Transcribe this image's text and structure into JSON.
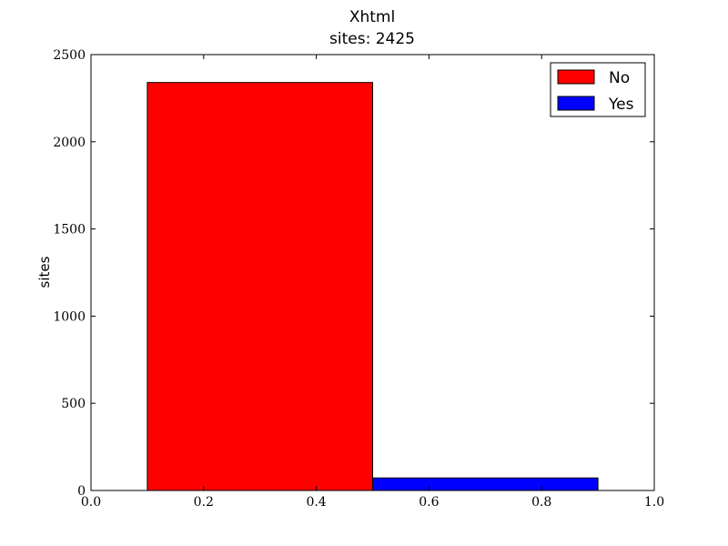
{
  "chart_data": {
    "type": "bar",
    "title": "Xhtml",
    "subtitle": "sites: 2425",
    "xlabel": "",
    "ylabel": "sites",
    "xlim": [
      0.0,
      1.0
    ],
    "ylim": [
      0,
      2500
    ],
    "xticks": [
      "0.0",
      "0.2",
      "0.4",
      "0.6",
      "0.8",
      "1.0"
    ],
    "yticks": [
      "0",
      "500",
      "1000",
      "1500",
      "2000",
      "2500"
    ],
    "bars": [
      {
        "name": "No",
        "x_start": 0.1,
        "x_end": 0.5,
        "value": 2340,
        "color": "#ff0000"
      },
      {
        "name": "Yes",
        "x_start": 0.5,
        "x_end": 0.9,
        "value": 72,
        "color": "#0000ff"
      }
    ],
    "legend": {
      "position": "top-right",
      "entries": [
        {
          "label": "No",
          "color": "#ff0000"
        },
        {
          "label": "Yes",
          "color": "#0000ff"
        }
      ]
    },
    "grid": false
  }
}
